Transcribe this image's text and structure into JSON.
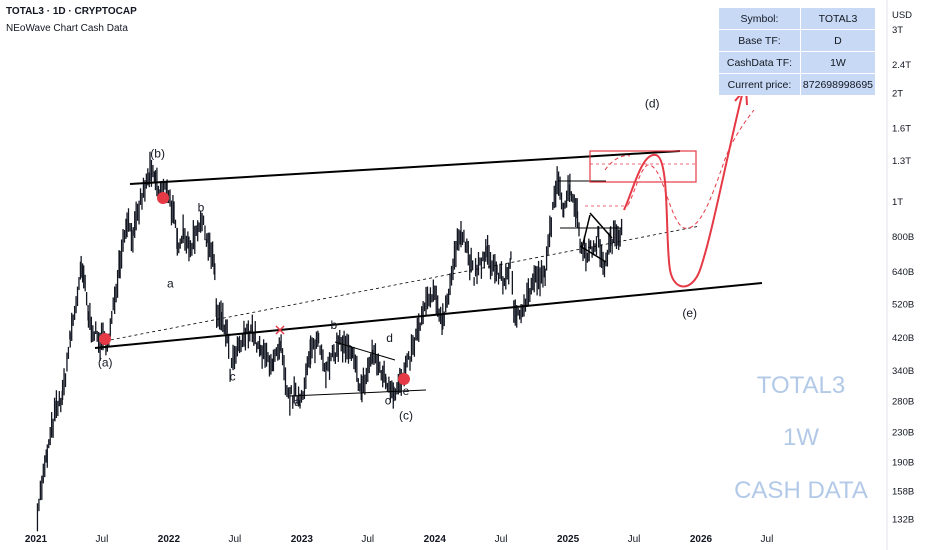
{
  "header": {
    "symbol_line": "TOTAL3 · 1D · CRYPTOCAP",
    "indicator_line": "NEoWave Chart Cash Data"
  },
  "info_table": [
    {
      "key": "Symbol:",
      "value": "TOTAL3"
    },
    {
      "key": "Base TF:",
      "value": "D"
    },
    {
      "key": "CashData TF:",
      "value": "1W"
    },
    {
      "key": "Current price:",
      "value": "872698998695"
    }
  ],
  "watermark": {
    "line1": "TOTAL3",
    "line2": "1W",
    "line3": "CASH DATA"
  },
  "colors": {
    "price": "#131722",
    "red": "#e53945",
    "axis_text": "#131722",
    "watermark": "#b3c9e8",
    "table_bg": "#c7d9f4"
  },
  "chart_data": {
    "type": "line",
    "title": "TOTAL3 · 1D · CRYPTOCAP",
    "y_scale": "log",
    "y_unit": "USD",
    "ylim": [
      125000000000,
      3600000000000
    ],
    "xlim": [
      "2021-01-01",
      "2026-12-31"
    ],
    "x_ticks": [
      {
        "date": "2021-01-01",
        "label": "2021",
        "bold": true
      },
      {
        "date": "2021-07-01",
        "label": "Jul",
        "bold": false
      },
      {
        "date": "2022-01-01",
        "label": "2022",
        "bold": true
      },
      {
        "date": "2022-07-01",
        "label": "Jul",
        "bold": false
      },
      {
        "date": "2023-01-01",
        "label": "2023",
        "bold": true
      },
      {
        "date": "2023-07-01",
        "label": "Jul",
        "bold": false
      },
      {
        "date": "2024-01-01",
        "label": "2024",
        "bold": true
      },
      {
        "date": "2024-07-01",
        "label": "Jul",
        "bold": false
      },
      {
        "date": "2025-01-01",
        "label": "2025",
        "bold": true
      },
      {
        "date": "2025-07-01",
        "label": "Jul",
        "bold": false
      },
      {
        "date": "2026-01-01",
        "label": "2026",
        "bold": true
      },
      {
        "date": "2026-07-01",
        "label": "Jul",
        "bold": false
      }
    ],
    "y_ticks": [
      {
        "value": 3000000000000,
        "label": "3T"
      },
      {
        "value": 2400000000000,
        "label": "2.4T"
      },
      {
        "value": 2000000000000,
        "label": "2T"
      },
      {
        "value": 1600000000000,
        "label": "1.6T"
      },
      {
        "value": 1300000000000,
        "label": "1.3T"
      },
      {
        "value": 1000000000000,
        "label": "1T"
      },
      {
        "value": 800000000000,
        "label": "800B"
      },
      {
        "value": 640000000000,
        "label": "640B"
      },
      {
        "value": 520000000000,
        "label": "520B"
      },
      {
        "value": 420000000000,
        "label": "420B"
      },
      {
        "value": 340000000000,
        "label": "340B"
      },
      {
        "value": 280000000000,
        "label": "280B"
      },
      {
        "value": 230000000000,
        "label": "230B"
      },
      {
        "value": 190000000000,
        "label": "190B"
      },
      {
        "value": 158000000000,
        "label": "158B"
      },
      {
        "value": 132000000000,
        "label": "132B"
      }
    ],
    "series": [
      {
        "values": [
          [
            "2021-01-05",
            140000000000
          ],
          [
            "2021-02-01",
            200000000000
          ],
          [
            "2021-02-22",
            260000000000
          ],
          [
            "2021-03-15",
            290000000000
          ],
          [
            "2021-04-05",
            420000000000
          ],
          [
            "2021-05-05",
            640000000000
          ],
          [
            "2021-05-12",
            620000000000
          ],
          [
            "2021-05-25",
            480000000000
          ],
          [
            "2021-06-22",
            410000000000
          ],
          [
            "2021-07-20",
            410000000000
          ],
          [
            "2021-08-20",
            700000000000
          ],
          [
            "2021-09-08",
            900000000000
          ],
          [
            "2021-09-25",
            800000000000
          ],
          [
            "2021-10-15",
            1000000000000
          ],
          [
            "2021-11-10",
            1200000000000
          ],
          [
            "2021-11-25",
            1150000000000
          ],
          [
            "2021-12-05",
            1050000000000
          ],
          [
            "2021-12-27",
            1100000000000
          ],
          [
            "2022-01-15",
            900000000000
          ],
          [
            "2022-01-24",
            760000000000
          ],
          [
            "2022-02-10",
            840000000000
          ],
          [
            "2022-02-25",
            730000000000
          ],
          [
            "2022-03-29",
            900000000000
          ],
          [
            "2022-04-15",
            800000000000
          ],
          [
            "2022-05-07",
            650000000000
          ],
          [
            "2022-05-12",
            480000000000
          ],
          [
            "2022-05-25",
            470000000000
          ],
          [
            "2022-06-10",
            430000000000
          ],
          [
            "2022-06-18",
            340000000000
          ],
          [
            "2022-07-10",
            390000000000
          ],
          [
            "2022-08-14",
            450000000000
          ],
          [
            "2022-09-10",
            380000000000
          ],
          [
            "2022-10-15",
            360000000000
          ],
          [
            "2022-11-05",
            390000000000
          ],
          [
            "2022-11-21",
            290000000000
          ],
          [
            "2022-12-31",
            290000000000
          ],
          [
            "2023-01-25",
            380000000000
          ],
          [
            "2023-02-16",
            420000000000
          ],
          [
            "2023-03-10",
            340000000000
          ],
          [
            "2023-04-15",
            410000000000
          ],
          [
            "2023-05-20",
            370000000000
          ],
          [
            "2023-06-15",
            300000000000
          ],
          [
            "2023-07-14",
            380000000000
          ],
          [
            "2023-08-20",
            320000000000
          ],
          [
            "2023-09-11",
            300000000000
          ],
          [
            "2023-10-05",
            320000000000
          ],
          [
            "2023-10-25",
            370000000000
          ],
          [
            "2023-12-08",
            520000000000
          ],
          [
            "2023-12-28",
            550000000000
          ],
          [
            "2024-01-23",
            470000000000
          ],
          [
            "2024-02-28",
            720000000000
          ],
          [
            "2024-03-13",
            850000000000
          ],
          [
            "2024-04-18",
            620000000000
          ],
          [
            "2024-05-21",
            720000000000
          ],
          [
            "2024-06-20",
            640000000000
          ],
          [
            "2024-07-10",
            600000000000
          ],
          [
            "2024-07-28",
            690000000000
          ],
          [
            "2024-08-05",
            480000000000
          ],
          [
            "2024-09-06",
            530000000000
          ],
          [
            "2024-09-30",
            610000000000
          ],
          [
            "2024-10-30",
            620000000000
          ],
          [
            "2024-11-12",
            840000000000
          ],
          [
            "2024-12-06",
            1170000000000
          ],
          [
            "2024-12-20",
            960000000000
          ],
          [
            "2025-01-06",
            1110000000000
          ],
          [
            "2025-01-27",
            920000000000
          ],
          [
            "2025-02-03",
            760000000000
          ],
          [
            "2025-02-28",
            720000000000
          ],
          [
            "2025-03-26",
            800000000000
          ],
          [
            "2025-04-07",
            650000000000
          ],
          [
            "2025-04-28",
            780000000000
          ],
          [
            "2025-05-20",
            820000000000
          ],
          [
            "2025-06-01",
            870000000000
          ]
        ]
      }
    ],
    "wave_labels": [
      {
        "text": "(a)",
        "date": "2021-07-10",
        "value": 350000000000
      },
      {
        "text": "(b)",
        "date": "2021-12-01",
        "value": 1330000000000
      },
      {
        "text": "a",
        "date": "2022-01-05",
        "value": 580000000000
      },
      {
        "text": "b",
        "date": "2022-03-30",
        "value": 940000000000
      },
      {
        "text": "c",
        "date": "2022-06-25",
        "value": 320000000000
      },
      {
        "text": "a",
        "date": "2022-12-20",
        "value": 272000000000
      },
      {
        "text": "b",
        "date": "2023-03-30",
        "value": 445000000000
      },
      {
        "text": "c",
        "date": "2023-08-25",
        "value": 275000000000
      },
      {
        "text": "d",
        "date": "2023-08-30",
        "value": 410000000000
      },
      {
        "text": "e",
        "date": "2023-10-14",
        "value": 292000000000
      },
      {
        "text": "(c)",
        "date": "2023-10-14",
        "value": 250000000000
      },
      {
        "text": "(d)",
        "date": "2025-08-20",
        "value": 1830000000000
      },
      {
        "text": "(e)",
        "date": "2025-12-01",
        "value": 480000000000
      }
    ]
  }
}
